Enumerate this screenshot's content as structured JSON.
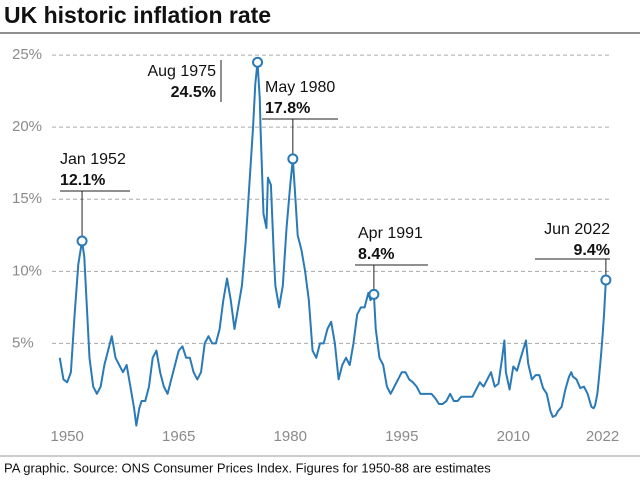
{
  "chart_data": {
    "type": "line",
    "title": "UK historic inflation rate",
    "source": "PA graphic. Source: ONS Consumer Prices Index. Figures for 1950-88 are estimates",
    "color": "#2a7ab8",
    "grid": true,
    "xlim": [
      1948.9,
      2022.6
    ],
    "ylim": [
      -0.8,
      25.7
    ],
    "xticks": [
      1950,
      1965,
      1980,
      1995,
      2010,
      2022
    ],
    "yticks": [
      {
        "value": 5,
        "label": "5%"
      },
      {
        "value": 10,
        "label": "10%"
      },
      {
        "value": 15,
        "label": "15%"
      },
      {
        "value": 20,
        "label": "20%"
      },
      {
        "value": 25,
        "label": "25%"
      }
    ],
    "x": [
      1949,
      1949.5,
      1950,
      1950.5,
      1951,
      1951.5,
      1952,
      1952.3,
      1952.6,
      1953,
      1953.5,
      1954,
      1954.5,
      1955,
      1955.5,
      1956,
      1956.5,
      1957,
      1957.5,
      1958,
      1958.5,
      1959,
      1959.3,
      1959.7,
      1960,
      1960.5,
      1961,
      1961.5,
      1962,
      1962.5,
      1963,
      1963.5,
      1964,
      1964.5,
      1965,
      1965.5,
      1966,
      1966.5,
      1967,
      1967.5,
      1968,
      1968.5,
      1969,
      1969.5,
      1970,
      1970.5,
      1971,
      1971.5,
      1972,
      1972.5,
      1973,
      1973.5,
      1974,
      1974.5,
      1975,
      1975.3,
      1975.6,
      1975.9,
      1976,
      1976.4,
      1976.8,
      1977,
      1977.4,
      1977.8,
      1978,
      1978.5,
      1979,
      1979.5,
      1980,
      1980.35,
      1980.7,
      1981,
      1981.5,
      1982,
      1982.5,
      1983,
      1983.5,
      1984,
      1984.5,
      1985,
      1985.5,
      1986,
      1986.5,
      1987,
      1987.5,
      1988,
      1988.5,
      1989,
      1989.5,
      1990,
      1990.5,
      1990.8,
      1991.25,
      1991.5,
      1992,
      1992.5,
      1993,
      1993.5,
      1994,
      1994.5,
      1995,
      1995.5,
      1996,
      1996.5,
      1997,
      1997.5,
      1998,
      1998.5,
      1999,
      1999.5,
      2000,
      2000.5,
      2001,
      2001.5,
      2002,
      2002.5,
      2003,
      2003.5,
      2004,
      2004.5,
      2005,
      2005.5,
      2006,
      2006.5,
      2007,
      2007.5,
      2008,
      2008.5,
      2008.8,
      2009,
      2009.5,
      2010,
      2010.5,
      2011,
      2011.7,
      2012,
      2012.5,
      2013,
      2013.5,
      2014,
      2014.5,
      2015,
      2015.3,
      2015.7,
      2016,
      2016.5,
      2017,
      2017.5,
      2017.8,
      2018,
      2018.5,
      2019,
      2019.5,
      2020,
      2020.5,
      2020.8,
      2021,
      2021.3,
      2021.5,
      2021.8,
      2022,
      2022.2,
      2022.45
    ],
    "values": [
      4,
      2.5,
      2.3,
      3,
      7,
      10.5,
      12.1,
      11,
      8,
      4,
      2,
      1.5,
      2,
      3.5,
      4.5,
      5.5,
      4,
      3.5,
      3,
      3.5,
      2,
      0.5,
      -0.7,
      0.5,
      1,
      1,
      2,
      4,
      4.5,
      3,
      2,
      1.5,
      2.5,
      3.5,
      4.5,
      4.8,
      4,
      4,
      3,
      2.5,
      3,
      5,
      5.5,
      5,
      5,
      6,
      8,
      9.5,
      8,
      6,
      7.5,
      9,
      12,
      16,
      20,
      23,
      24.5,
      22,
      20,
      14,
      13,
      16.5,
      16,
      11,
      9,
      7.5,
      9,
      13,
      16,
      17.8,
      15,
      12.5,
      11.5,
      10,
      8,
      4.5,
      4,
      5,
      5,
      6,
      6.5,
      5,
      2.5,
      3.5,
      4,
      3.5,
      5,
      7,
      7.5,
      7.5,
      8.5,
      8,
      8.4,
      6,
      4,
      3.5,
      2,
      1.5,
      2,
      2.5,
      3,
      3,
      2.5,
      2.3,
      2,
      1.5,
      1.5,
      1.5,
      1.5,
      1.2,
      0.8,
      0.8,
      1,
      1.5,
      1,
      1,
      1.3,
      1.3,
      1.3,
      1.3,
      1.8,
      2.3,
      2,
      2.5,
      3,
      2,
      2.2,
      4,
      5.2,
      3,
      1.8,
      3.4,
      3.1,
      4,
      5.2,
      3.6,
      2.5,
      2.8,
      2.8,
      1.9,
      1.5,
      0.3,
      -0.1,
      0,
      0.3,
      0.6,
      1.8,
      2.7,
      3,
      2.7,
      2.5,
      1.9,
      2,
      1.5,
      0.6,
      0.5,
      0.7,
      1.5,
      2.5,
      4.2,
      5.5,
      7,
      9.4
    ],
    "annotations": [
      {
        "date": "Jan 1952",
        "x": 1952,
        "value": 12.1,
        "value_label": "12.1%"
      },
      {
        "date": "Aug 1975",
        "x": 1975.6,
        "value": 24.5,
        "value_label": "24.5%"
      },
      {
        "date": "May 1980",
        "x": 1980.35,
        "value": 17.8,
        "value_label": "17.8%"
      },
      {
        "date": "Apr 1991",
        "x": 1991.25,
        "value": 8.4,
        "value_label": "8.4%"
      },
      {
        "date": "Jun 2022",
        "x": 2022.45,
        "value": 9.4,
        "value_label": "9.4%"
      }
    ]
  }
}
